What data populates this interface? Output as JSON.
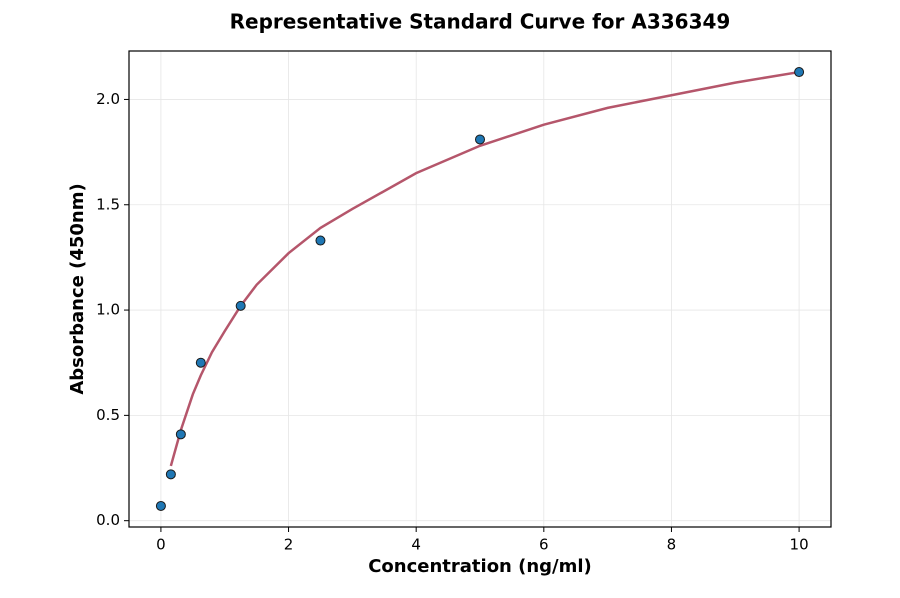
{
  "chart_data": {
    "type": "scatter",
    "title": "Representative Standard Curve for A336349",
    "xlabel": "Concentration (ng/ml)",
    "ylabel": "Absorbance (450nm)",
    "xlim": [
      -0.5,
      10.5
    ],
    "ylim": [
      -0.03,
      2.23
    ],
    "xticks": [
      0,
      2,
      4,
      6,
      8,
      10
    ],
    "yticks": [
      {
        "value": 0,
        "label": "0.0"
      },
      0.5,
      {
        "value": 1,
        "label": "1.0"
      },
      1.5,
      {
        "value": 2,
        "label": "2.0"
      }
    ],
    "grid": true,
    "series": [
      {
        "type": "line",
        "color": "#b5566b",
        "x": [
          0.156,
          0.3125,
          0.5,
          0.625,
          0.8,
          1,
          1.25,
          1.5,
          2,
          2.5,
          3,
          4,
          5,
          6,
          7,
          8,
          9,
          10
        ],
        "values": [
          0.26,
          0.43,
          0.6,
          0.69,
          0.8,
          0.9,
          1.02,
          1.12,
          1.27,
          1.39,
          1.48,
          1.65,
          1.78,
          1.88,
          1.96,
          2.02,
          2.08,
          2.13
        ]
      },
      {
        "type": "scatter",
        "color": "#1f77b4",
        "x": [
          0,
          0.156,
          0.3125,
          0.625,
          1.25,
          2.5,
          5,
          10
        ],
        "values": [
          0.07,
          0.22,
          0.41,
          0.75,
          1.02,
          1.33,
          1.81,
          2.13
        ]
      }
    ]
  }
}
